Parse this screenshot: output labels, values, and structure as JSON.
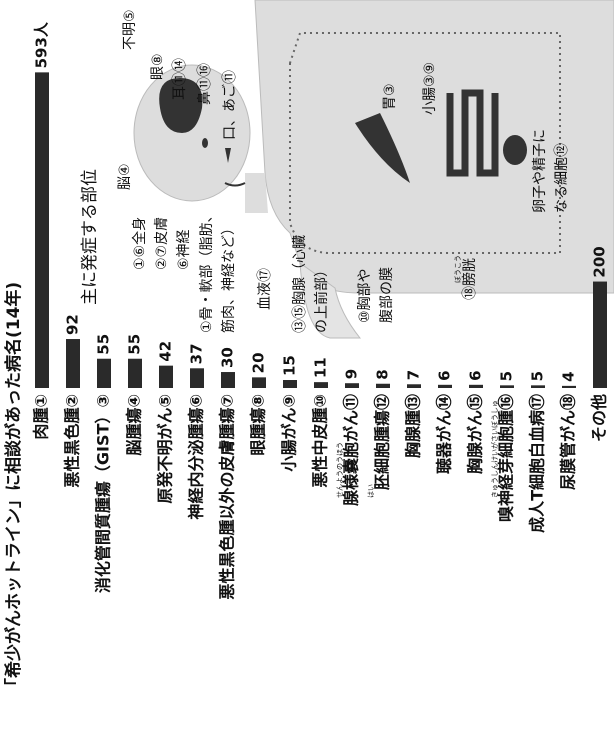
{
  "chart_data": {
    "type": "bar",
    "title": "「希少がんホットライン」に相談があった病名(14年)",
    "categories": [
      "肉腫①",
      "悪性黒色腫②",
      "消化管間質腫瘍（GIST）③",
      "脳腫瘍④",
      "原発不明がん⑤",
      "神経内分泌腫瘍⑥",
      "悪性黒色腫以外の皮膚腫瘍⑦",
      "眼腫瘍⑧",
      "小腸がん⑨",
      "悪性中皮腫⑩",
      "腺様嚢胞がん⑪",
      "胚細胞腫瘍⑫",
      "胸腺腫⑬",
      "聴器がん⑭",
      "胸腺がん⑮",
      "嗅神経芽細胞腫⑯",
      "成人T細胞白血病⑰",
      "尿膜管がん⑱",
      "その他"
    ],
    "category_ruby": [
      null,
      null,
      null,
      null,
      null,
      null,
      null,
      null,
      null,
      null,
      "せんようのうほう",
      "はい",
      null,
      null,
      null,
      "きゅうしんけいがさいぼうしゅ",
      null,
      null,
      null
    ],
    "values": [
      593,
      92,
      55,
      55,
      42,
      37,
      30,
      20,
      15,
      11,
      9,
      8,
      7,
      6,
      6,
      5,
      5,
      4,
      200
    ],
    "value_labels": [
      "593人",
      "92",
      "55",
      "55",
      "42",
      "37",
      "30",
      "20",
      "15",
      "11",
      "9",
      "8",
      "7",
      "6",
      "6",
      "5",
      "5",
      "4",
      "200"
    ],
    "color": "#2a2a2a",
    "xlim": [
      0,
      620
    ]
  },
  "diagram": {
    "heading": "主に発症する部位",
    "labels": [
      "不明⑤",
      "眼⑧",
      "耳⑪⑭",
      "鼻⑪⑯",
      "口、あご⑪",
      "脳④",
      "胃③",
      "小腸③⑨",
      "卵子や精子に",
      "なる細胞⑫",
      "①⑥全身",
      "②⑦皮膚",
      "⑥神経",
      "①骨・軟部（脂肪、",
      "筋肉、神経など）",
      "血液⑰",
      "⑬⑮胸腺（心臓",
      "の上前部）",
      "⑩胸部や",
      "腹部の膜",
      "⑱膀胱"
    ],
    "bladder_ruby": "ぼうこう"
  }
}
